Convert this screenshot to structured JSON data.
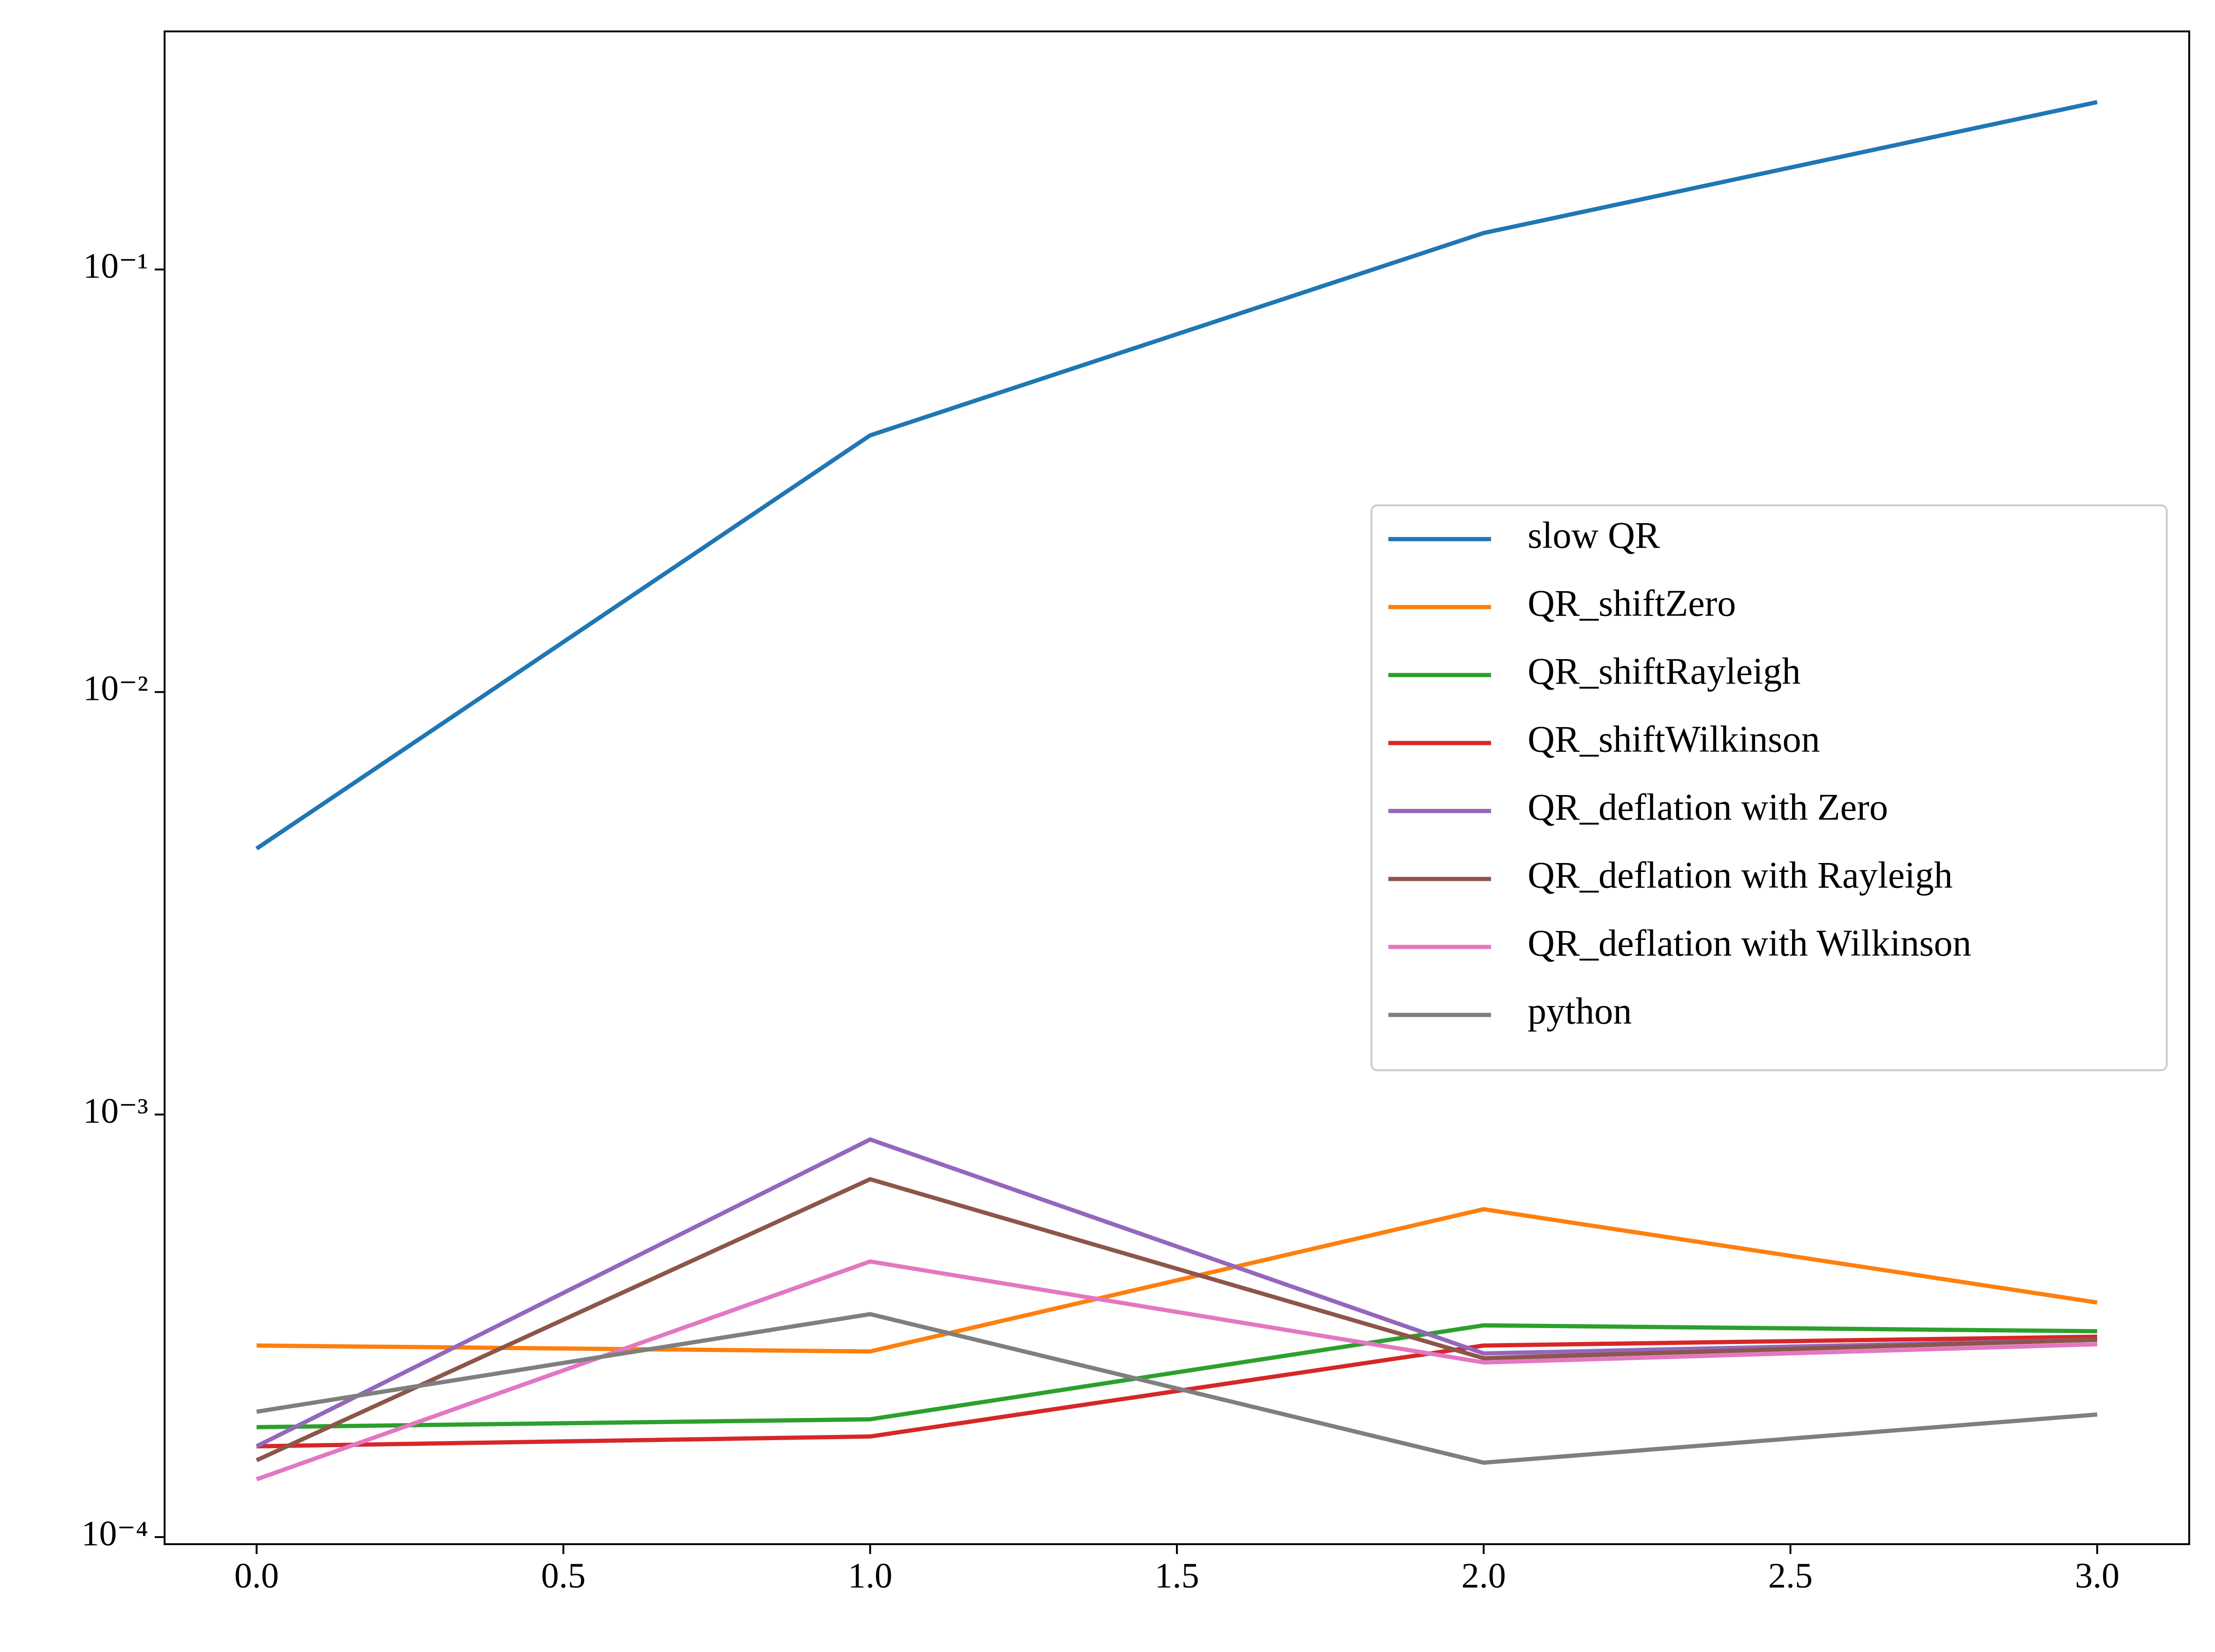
{
  "chart_data": {
    "type": "line",
    "x": [
      0,
      1,
      2,
      3
    ],
    "series": [
      {
        "name": "slow QR",
        "color": "#1f77b4",
        "values": [
          0.00426,
          0.0405,
          0.122,
          0.249
        ]
      },
      {
        "name": "QR_shiftZero",
        "color": "#ff7f0e",
        "values": [
          0.000284,
          0.000275,
          0.000597,
          0.000359
        ]
      },
      {
        "name": "QR_shiftRayleigh",
        "color": "#2ca02c",
        "values": [
          0.000182,
          0.00019,
          0.000317,
          0.000307
        ]
      },
      {
        "name": "QR_shiftWilkinson",
        "color": "#d62728",
        "values": [
          0.000164,
          0.000173,
          0.000284,
          0.000298
        ]
      },
      {
        "name": "QR_deflation with Zero",
        "color": "#9467bd",
        "values": [
          0.000164,
          0.000873,
          0.000272,
          0.000293
        ]
      },
      {
        "name": "QR_deflation with Rayleigh",
        "color": "#8c564b",
        "values": [
          0.000152,
          0.000703,
          0.000265,
          0.000293
        ]
      },
      {
        "name": "QR_deflation with Wilkinson",
        "color": "#e377c2",
        "values": [
          0.000137,
          0.000449,
          0.000259,
          0.000286
        ]
      },
      {
        "name": "python",
        "color": "#7f7f7f",
        "values": [
          0.000198,
          0.000337,
          0.00015,
          0.000195
        ]
      }
    ],
    "xlim": [
      -0.15,
      3.15
    ],
    "xticks": [
      {
        "value": 0,
        "label": "0.0"
      },
      0.5,
      {
        "value": 1,
        "label": "1.0"
      },
      1.5,
      {
        "value": 2,
        "label": "2.0"
      },
      2.5,
      {
        "value": 3,
        "label": "3.0"
      }
    ],
    "ylim": [
      9.62e-05,
      0.366
    ],
    "yscale": "log",
    "yticks": [
      {
        "value": 0.0001,
        "label": "10⁻⁴"
      },
      {
        "value": 0.001,
        "label": "10⁻³"
      },
      {
        "value": 0.01,
        "label": "10⁻²"
      },
      {
        "value": 0.1,
        "label": "10⁻¹"
      }
    ],
    "legend": "center right"
  }
}
